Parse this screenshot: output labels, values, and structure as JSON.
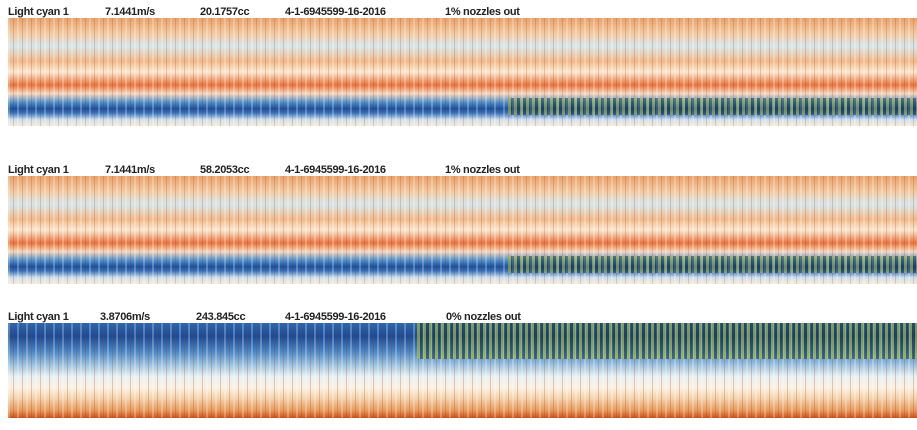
{
  "panels": [
    {
      "ink": "Light cyan 1",
      "speed": "7.1441m/s",
      "volume": "20.1757cc",
      "id": "4-1-6945599-16-2016",
      "nozzles": "1% nozzles out"
    },
    {
      "ink": "Light cyan 1",
      "speed": "7.1441m/s",
      "volume": "58.2053cc",
      "id": "4-1-6945599-16-2016",
      "nozzles": "1% nozzles out"
    },
    {
      "ink": "Light cyan 1",
      "speed": "3.8706m/s",
      "volume": "243.845cc",
      "id": "4-1-6945599-16-2016",
      "nozzles": "0% nozzles out"
    }
  ]
}
